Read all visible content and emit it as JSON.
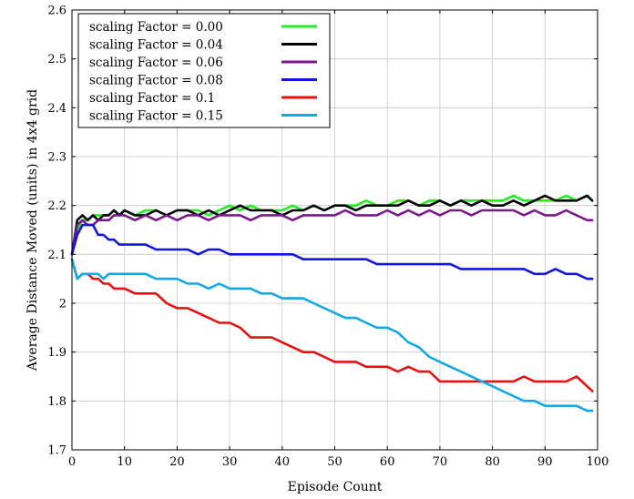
{
  "chart_data": {
    "type": "line",
    "title": "",
    "xlabel": "Episode Count",
    "ylabel": "Average Distance Moved (units) in 4x4 grid",
    "xlim": [
      0,
      100
    ],
    "ylim": [
      1.7,
      2.6
    ],
    "xticks": [
      0,
      10,
      20,
      30,
      40,
      50,
      60,
      70,
      80,
      90,
      100
    ],
    "yticks": [
      1.7,
      1.8,
      1.9,
      2.0,
      2.1,
      2.2,
      2.3,
      2.4,
      2.5,
      2.6
    ],
    "grid": true,
    "legend_position": "top-left",
    "series": [
      {
        "name": "scaling Factor = 0.00",
        "color": "#22ee22",
        "x": [
          0,
          1,
          2,
          3,
          4,
          5,
          6,
          7,
          8,
          9,
          10,
          12,
          14,
          16,
          18,
          20,
          22,
          24,
          26,
          28,
          30,
          32,
          34,
          36,
          38,
          40,
          42,
          44,
          46,
          48,
          50,
          52,
          54,
          56,
          58,
          60,
          62,
          64,
          66,
          68,
          70,
          72,
          74,
          76,
          78,
          80,
          82,
          84,
          86,
          88,
          90,
          92,
          94,
          96,
          98,
          99
        ],
        "y": [
          2.1,
          2.15,
          2.17,
          2.17,
          2.18,
          2.18,
          2.18,
          2.18,
          2.19,
          2.18,
          2.19,
          2.18,
          2.19,
          2.19,
          2.18,
          2.19,
          2.19,
          2.19,
          2.18,
          2.19,
          2.2,
          2.19,
          2.2,
          2.19,
          2.19,
          2.19,
          2.2,
          2.19,
          2.2,
          2.19,
          2.2,
          2.2,
          2.2,
          2.21,
          2.2,
          2.2,
          2.21,
          2.21,
          2.2,
          2.21,
          2.21,
          2.2,
          2.21,
          2.21,
          2.21,
          2.21,
          2.21,
          2.22,
          2.21,
          2.21,
          2.21,
          2.21,
          2.22,
          2.21,
          2.22,
          2.21
        ]
      },
      {
        "name": "scaling Factor = 0.04",
        "color": "#000000",
        "x": [
          0,
          1,
          2,
          3,
          4,
          5,
          6,
          7,
          8,
          9,
          10,
          12,
          14,
          16,
          18,
          20,
          22,
          24,
          26,
          28,
          30,
          32,
          34,
          36,
          38,
          40,
          42,
          44,
          46,
          48,
          50,
          52,
          54,
          56,
          58,
          60,
          62,
          64,
          66,
          68,
          70,
          72,
          74,
          76,
          78,
          80,
          82,
          84,
          86,
          88,
          90,
          92,
          94,
          96,
          98,
          99
        ],
        "y": [
          2.1,
          2.17,
          2.18,
          2.17,
          2.18,
          2.17,
          2.18,
          2.18,
          2.19,
          2.18,
          2.19,
          2.18,
          2.18,
          2.19,
          2.18,
          2.19,
          2.19,
          2.18,
          2.19,
          2.18,
          2.19,
          2.2,
          2.19,
          2.19,
          2.19,
          2.18,
          2.19,
          2.19,
          2.2,
          2.19,
          2.2,
          2.2,
          2.19,
          2.2,
          2.2,
          2.2,
          2.2,
          2.21,
          2.2,
          2.2,
          2.21,
          2.2,
          2.21,
          2.2,
          2.21,
          2.2,
          2.2,
          2.21,
          2.2,
          2.21,
          2.22,
          2.21,
          2.21,
          2.21,
          2.22,
          2.21
        ]
      },
      {
        "name": "scaling Factor = 0.06",
        "color": "#7a1a8a",
        "x": [
          0,
          1,
          2,
          3,
          4,
          5,
          6,
          7,
          8,
          9,
          10,
          12,
          14,
          16,
          18,
          20,
          22,
          24,
          26,
          28,
          30,
          32,
          34,
          36,
          38,
          40,
          42,
          44,
          46,
          48,
          50,
          52,
          54,
          56,
          58,
          60,
          62,
          64,
          66,
          68,
          70,
          72,
          74,
          76,
          78,
          80,
          82,
          84,
          86,
          88,
          90,
          92,
          94,
          96,
          98,
          99
        ],
        "y": [
          2.1,
          2.16,
          2.17,
          2.16,
          2.16,
          2.17,
          2.17,
          2.17,
          2.18,
          2.18,
          2.18,
          2.17,
          2.18,
          2.17,
          2.18,
          2.17,
          2.18,
          2.18,
          2.17,
          2.18,
          2.18,
          2.18,
          2.17,
          2.18,
          2.18,
          2.18,
          2.17,
          2.18,
          2.18,
          2.18,
          2.18,
          2.19,
          2.18,
          2.18,
          2.18,
          2.19,
          2.18,
          2.19,
          2.18,
          2.19,
          2.18,
          2.19,
          2.19,
          2.18,
          2.19,
          2.19,
          2.19,
          2.19,
          2.18,
          2.19,
          2.18,
          2.18,
          2.19,
          2.18,
          2.17,
          2.17
        ]
      },
      {
        "name": "scaling Factor = 0.08",
        "color": "#1414e0",
        "x": [
          0,
          1,
          2,
          3,
          4,
          5,
          6,
          7,
          8,
          9,
          10,
          12,
          14,
          16,
          18,
          20,
          22,
          24,
          26,
          28,
          30,
          32,
          34,
          36,
          38,
          40,
          42,
          44,
          46,
          48,
          50,
          52,
          54,
          56,
          58,
          60,
          62,
          64,
          66,
          68,
          70,
          72,
          74,
          76,
          78,
          80,
          82,
          84,
          86,
          88,
          90,
          92,
          94,
          96,
          98,
          99
        ],
        "y": [
          2.1,
          2.14,
          2.16,
          2.16,
          2.16,
          2.14,
          2.14,
          2.13,
          2.13,
          2.12,
          2.12,
          2.12,
          2.12,
          2.11,
          2.11,
          2.11,
          2.11,
          2.1,
          2.11,
          2.11,
          2.1,
          2.1,
          2.1,
          2.1,
          2.1,
          2.1,
          2.1,
          2.09,
          2.09,
          2.09,
          2.09,
          2.09,
          2.09,
          2.09,
          2.08,
          2.08,
          2.08,
          2.08,
          2.08,
          2.08,
          2.08,
          2.08,
          2.07,
          2.07,
          2.07,
          2.07,
          2.07,
          2.07,
          2.07,
          2.06,
          2.06,
          2.07,
          2.06,
          2.06,
          2.05,
          2.05
        ]
      },
      {
        "name": "scaling Factor = 0.1",
        "color": "#e81010",
        "x": [
          0,
          1,
          2,
          3,
          4,
          5,
          6,
          7,
          8,
          9,
          10,
          12,
          14,
          16,
          18,
          20,
          22,
          24,
          26,
          28,
          30,
          32,
          34,
          36,
          38,
          40,
          42,
          44,
          46,
          48,
          50,
          52,
          54,
          56,
          58,
          60,
          62,
          64,
          66,
          68,
          70,
          72,
          74,
          76,
          78,
          80,
          82,
          84,
          86,
          88,
          90,
          92,
          94,
          96,
          98,
          99
        ],
        "y": [
          2.09,
          2.05,
          2.06,
          2.06,
          2.05,
          2.05,
          2.04,
          2.04,
          2.03,
          2.03,
          2.03,
          2.02,
          2.02,
          2.02,
          2.0,
          1.99,
          1.99,
          1.98,
          1.97,
          1.96,
          1.96,
          1.95,
          1.93,
          1.93,
          1.93,
          1.92,
          1.91,
          1.9,
          1.9,
          1.89,
          1.88,
          1.88,
          1.88,
          1.87,
          1.87,
          1.87,
          1.86,
          1.87,
          1.86,
          1.86,
          1.84,
          1.84,
          1.84,
          1.84,
          1.84,
          1.84,
          1.84,
          1.84,
          1.85,
          1.84,
          1.84,
          1.84,
          1.84,
          1.85,
          1.83,
          1.82
        ]
      },
      {
        "name": "scaling Factor = 0.15",
        "color": "#12a8e6",
        "x": [
          0,
          1,
          2,
          3,
          4,
          5,
          6,
          7,
          8,
          9,
          10,
          12,
          14,
          16,
          18,
          20,
          22,
          24,
          26,
          28,
          30,
          32,
          34,
          36,
          38,
          40,
          42,
          44,
          46,
          48,
          50,
          52,
          54,
          56,
          58,
          60,
          62,
          64,
          66,
          68,
          70,
          72,
          74,
          76,
          78,
          80,
          82,
          84,
          86,
          88,
          90,
          92,
          94,
          96,
          98,
          99
        ],
        "y": [
          2.09,
          2.05,
          2.06,
          2.06,
          2.06,
          2.06,
          2.05,
          2.06,
          2.06,
          2.06,
          2.06,
          2.06,
          2.06,
          2.05,
          2.05,
          2.05,
          2.04,
          2.04,
          2.03,
          2.04,
          2.03,
          2.03,
          2.03,
          2.02,
          2.02,
          2.01,
          2.01,
          2.01,
          2.0,
          1.99,
          1.98,
          1.97,
          1.97,
          1.96,
          1.95,
          1.95,
          1.94,
          1.92,
          1.91,
          1.89,
          1.88,
          1.87,
          1.86,
          1.85,
          1.84,
          1.83,
          1.82,
          1.81,
          1.8,
          1.8,
          1.79,
          1.79,
          1.79,
          1.79,
          1.78,
          1.78
        ]
      }
    ]
  }
}
